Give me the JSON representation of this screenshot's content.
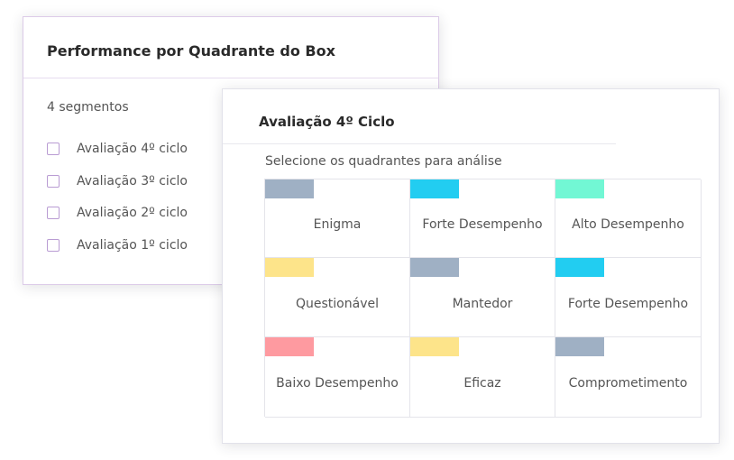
{
  "back_card": {
    "title": "Performance por Quadrante do Box",
    "segment_count": "4 segmentos",
    "segments": [
      {
        "label": "Avaliação 4º ciclo",
        "checked": false
      },
      {
        "label": "Avaliação 3º ciclo",
        "checked": false
      },
      {
        "label": "Avaliação 2º ciclo",
        "checked": false
      },
      {
        "label": "Avaliação 1º ciclo",
        "checked": false
      }
    ]
  },
  "front_card": {
    "title": "Avaliação 4º Ciclo",
    "instruction": "Selecione os quadrantes para análise",
    "quadrants": [
      {
        "label": "Enigma",
        "color": "#9fb0c4"
      },
      {
        "label": "Forte Desempenho",
        "color": "#22cdf1"
      },
      {
        "label": "Alto Desempenho",
        "color": "#72f7d4"
      },
      {
        "label": "Questionável",
        "color": "#fde48a"
      },
      {
        "label": "Mantedor",
        "color": "#9fb0c4"
      },
      {
        "label": "Forte Desempenho",
        "color": "#22cdf1"
      },
      {
        "label": "Baixo Desempenho",
        "color": "#fe9aa0"
      },
      {
        "label": "Eficaz",
        "color": "#fde48a"
      },
      {
        "label": "Comprometimento",
        "color": "#9fb0c4"
      }
    ]
  }
}
